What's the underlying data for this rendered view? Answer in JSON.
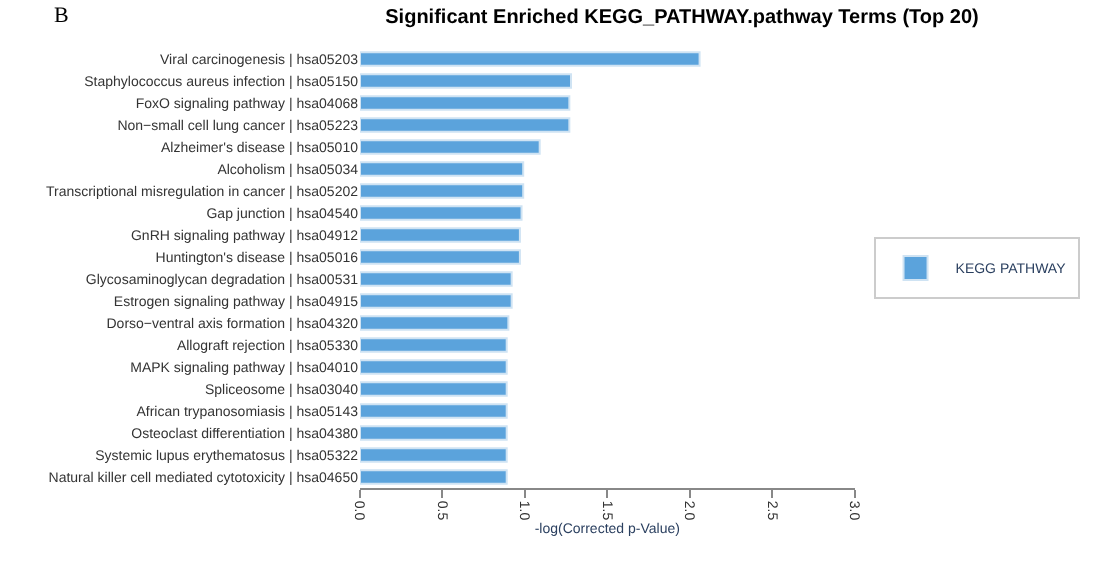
{
  "chart_data": {
    "type": "bar",
    "orientation": "horizontal",
    "title": "Significant Enriched KEGG_PATHWAY.pathway Terms (Top 20)",
    "xlabel": "-log(Corrected p-Value)",
    "annotations": [
      "B"
    ],
    "categories": [
      "Viral carcinogenesis | hsa05203",
      "Staphylococcus aureus infection | hsa05150",
      "FoxO signaling pathway | hsa04068",
      "Non−small cell lung cancer | hsa05223",
      "Alzheimer's disease | hsa05010",
      "Alcoholism | hsa05034",
      "Transcriptional misregulation in cancer | hsa05202",
      "Gap junction | hsa04540",
      "GnRH signaling pathway | hsa04912",
      "Huntington's disease | hsa05016",
      "Glycosaminoglycan degradation | hsa00531",
      "Estrogen signaling pathway | hsa04915",
      "Dorso−ventral axis formation | hsa04320",
      "Allograft rejection | hsa05330",
      "MAPK signaling pathway | hsa04010",
      "Spliceosome | hsa03040",
      "African trypanosomiasis | hsa05143",
      "Osteoclast differentiation | hsa04380",
      "Systemic lupus erythematosus | hsa05322",
      "Natural killer cell mediated cytotoxicity | hsa04650"
    ],
    "series": [
      {
        "name": "KEGG PATHWAY",
        "color": "#5ba3dc",
        "values": [
          2.06,
          1.28,
          1.27,
          1.27,
          1.09,
          0.99,
          0.99,
          0.98,
          0.97,
          0.97,
          0.92,
          0.92,
          0.9,
          0.89,
          0.89,
          0.89,
          0.89,
          0.89,
          0.89,
          0.89
        ]
      }
    ],
    "xlim": [
      0,
      3
    ],
    "xticks": [
      {
        "value": 0,
        "label": "0.0"
      },
      {
        "value": 0.5,
        "label": "0.5"
      },
      {
        "value": 1,
        "label": "1.0"
      },
      {
        "value": 1.5,
        "label": "1.5"
      },
      {
        "value": 2,
        "label": "2.0"
      },
      {
        "value": 2.5,
        "label": "2.5"
      },
      {
        "value": 3,
        "label": "3.0"
      }
    ],
    "legend": "right"
  }
}
